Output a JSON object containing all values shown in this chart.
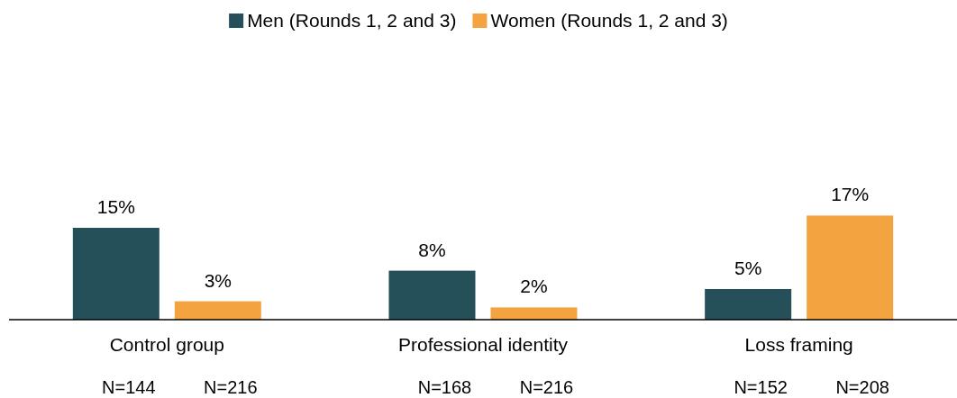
{
  "chart_data": {
    "type": "bar",
    "categories": [
      "Control group",
      "Professional identity",
      "Loss framing"
    ],
    "series": [
      {
        "name": "Men (Rounds 1, 2 and 3)",
        "color": "#254f59",
        "values": [
          15,
          8,
          5
        ],
        "value_labels": [
          "15%",
          "8%",
          "5%"
        ]
      },
      {
        "name": "Women (Rounds 1, 2 and 3)",
        "color": "#f4a341",
        "values": [
          3,
          2,
          17
        ],
        "value_labels": [
          "3%",
          "2%",
          "17%"
        ]
      }
    ],
    "legend": "top",
    "annotations": [
      "N=144",
      "N=216",
      "N=168",
      "N=216",
      "N=152",
      "N=208"
    ]
  }
}
